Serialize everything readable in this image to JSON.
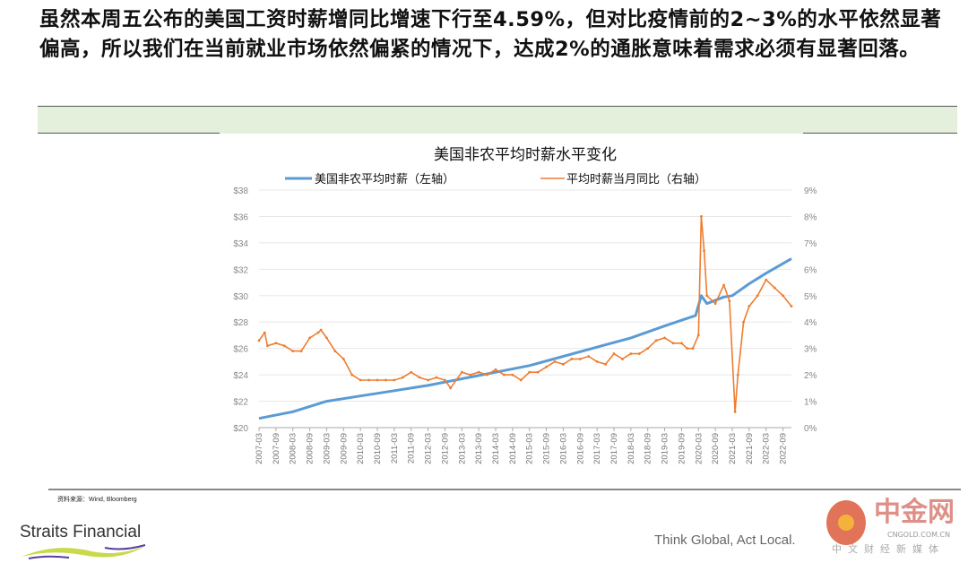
{
  "headline": "虽然本周五公布的美国工资时薪增同比增速下行至4.59%，但对比疫情前的2~3%的水平依然显著偏高，所以我们在当前就业市场依然偏紧的情况下，达成2%的通胀意味着需求必须有显著回落。",
  "footer": {
    "source": "资料来源：Wind, Bloomberg",
    "brand": "Straits Financial",
    "slogan": "Think Global, Act Local.",
    "watermark_name": "中金网",
    "watermark_url": "CNGOLD.COM.CN",
    "watermark_sub": "中文财经新媒体"
  },
  "chart_data": {
    "type": "line",
    "title": "美国非农平均时薪水平变化",
    "legend_position": "top",
    "grid": true,
    "y_left": {
      "ticks": [
        "$20",
        "$22",
        "$24",
        "$26",
        "$28",
        "$30",
        "$32",
        "$34",
        "$36",
        "$38"
      ],
      "range": [
        20,
        38
      ]
    },
    "y_right": {
      "ticks": [
        "0%",
        "1%",
        "2%",
        "3%",
        "4%",
        "5%",
        "6%",
        "7%",
        "8%",
        "9%"
      ],
      "range": [
        0,
        9
      ]
    },
    "x_range": [
      "2007-03",
      "2022-12"
    ],
    "x_ticks": [
      "2007-03",
      "2007-09",
      "2008-03",
      "2008-09",
      "2009-03",
      "2009-09",
      "2010-03",
      "2010-09",
      "2011-03",
      "2011-09",
      "2012-03",
      "2012-09",
      "2013-03",
      "2013-09",
      "2014-03",
      "2014-09",
      "2015-03",
      "2015-09",
      "2016-03",
      "2016-09",
      "2017-03",
      "2017-09",
      "2018-03",
      "2018-09",
      "2019-03",
      "2019-09",
      "2020-03",
      "2020-09",
      "2021-03",
      "2021-09",
      "2022-03",
      "2022-09"
    ],
    "colors": {
      "wage": "#5b9bd5",
      "yoy": "#ed7d31"
    },
    "series": [
      {
        "name": "美国非农平均时薪（左轴）",
        "axis": "left",
        "points": [
          [
            "2007-03",
            20.7
          ],
          [
            "2008-03",
            21.2
          ],
          [
            "2009-03",
            22.0
          ],
          [
            "2010-03",
            22.4
          ],
          [
            "2011-03",
            22.8
          ],
          [
            "2012-03",
            23.2
          ],
          [
            "2013-03",
            23.7
          ],
          [
            "2014-03",
            24.2
          ],
          [
            "2015-03",
            24.7
          ],
          [
            "2016-03",
            25.4
          ],
          [
            "2017-03",
            26.1
          ],
          [
            "2018-03",
            26.8
          ],
          [
            "2019-03",
            27.7
          ],
          [
            "2020-02",
            28.5
          ],
          [
            "2020-04",
            30.0
          ],
          [
            "2020-06",
            29.4
          ],
          [
            "2020-12",
            29.9
          ],
          [
            "2021-03",
            30.0
          ],
          [
            "2021-09",
            30.9
          ],
          [
            "2022-03",
            31.7
          ],
          [
            "2022-12",
            32.8
          ]
        ]
      },
      {
        "name": "平均时薪当月同比（右轴）",
        "axis": "right",
        "points": [
          [
            "2007-03",
            3.3
          ],
          [
            "2007-05",
            3.6
          ],
          [
            "2007-06",
            3.1
          ],
          [
            "2007-09",
            3.2
          ],
          [
            "2007-12",
            3.1
          ],
          [
            "2008-03",
            2.9
          ],
          [
            "2008-06",
            2.9
          ],
          [
            "2008-09",
            3.4
          ],
          [
            "2008-12",
            3.6
          ],
          [
            "2009-01",
            3.7
          ],
          [
            "2009-03",
            3.4
          ],
          [
            "2009-06",
            2.9
          ],
          [
            "2009-09",
            2.6
          ],
          [
            "2009-12",
            2.0
          ],
          [
            "2010-03",
            1.8
          ],
          [
            "2010-06",
            1.8
          ],
          [
            "2010-09",
            1.8
          ],
          [
            "2010-12",
            1.8
          ],
          [
            "2011-03",
            1.8
          ],
          [
            "2011-06",
            1.9
          ],
          [
            "2011-09",
            2.1
          ],
          [
            "2011-12",
            1.9
          ],
          [
            "2012-03",
            1.8
          ],
          [
            "2012-06",
            1.9
          ],
          [
            "2012-09",
            1.8
          ],
          [
            "2012-11",
            1.5
          ],
          [
            "2013-03",
            2.1
          ],
          [
            "2013-06",
            2.0
          ],
          [
            "2013-09",
            2.1
          ],
          [
            "2013-12",
            2.0
          ],
          [
            "2014-03",
            2.2
          ],
          [
            "2014-06",
            2.0
          ],
          [
            "2014-09",
            2.0
          ],
          [
            "2014-12",
            1.8
          ],
          [
            "2015-03",
            2.1
          ],
          [
            "2015-06",
            2.1
          ],
          [
            "2015-09",
            2.3
          ],
          [
            "2015-12",
            2.5
          ],
          [
            "2016-03",
            2.4
          ],
          [
            "2016-06",
            2.6
          ],
          [
            "2016-09",
            2.6
          ],
          [
            "2016-12",
            2.7
          ],
          [
            "2017-03",
            2.5
          ],
          [
            "2017-06",
            2.4
          ],
          [
            "2017-09",
            2.8
          ],
          [
            "2017-12",
            2.6
          ],
          [
            "2018-03",
            2.8
          ],
          [
            "2018-06",
            2.8
          ],
          [
            "2018-09",
            3.0
          ],
          [
            "2018-12",
            3.3
          ],
          [
            "2019-03",
            3.4
          ],
          [
            "2019-06",
            3.2
          ],
          [
            "2019-09",
            3.2
          ],
          [
            "2019-11",
            3.0
          ],
          [
            "2020-01",
            3.0
          ],
          [
            "2020-03",
            3.5
          ],
          [
            "2020-04",
            8.0
          ],
          [
            "2020-05",
            6.7
          ],
          [
            "2020-06",
            5.0
          ],
          [
            "2020-09",
            4.7
          ],
          [
            "2020-12",
            5.4
          ],
          [
            "2021-02",
            4.8
          ],
          [
            "2021-04",
            0.6
          ],
          [
            "2021-05",
            2.0
          ],
          [
            "2021-07",
            4.0
          ],
          [
            "2021-09",
            4.6
          ],
          [
            "2021-12",
            5.0
          ],
          [
            "2022-03",
            5.6
          ],
          [
            "2022-06",
            5.3
          ],
          [
            "2022-09",
            5.0
          ],
          [
            "2022-12",
            4.6
          ]
        ]
      }
    ]
  }
}
